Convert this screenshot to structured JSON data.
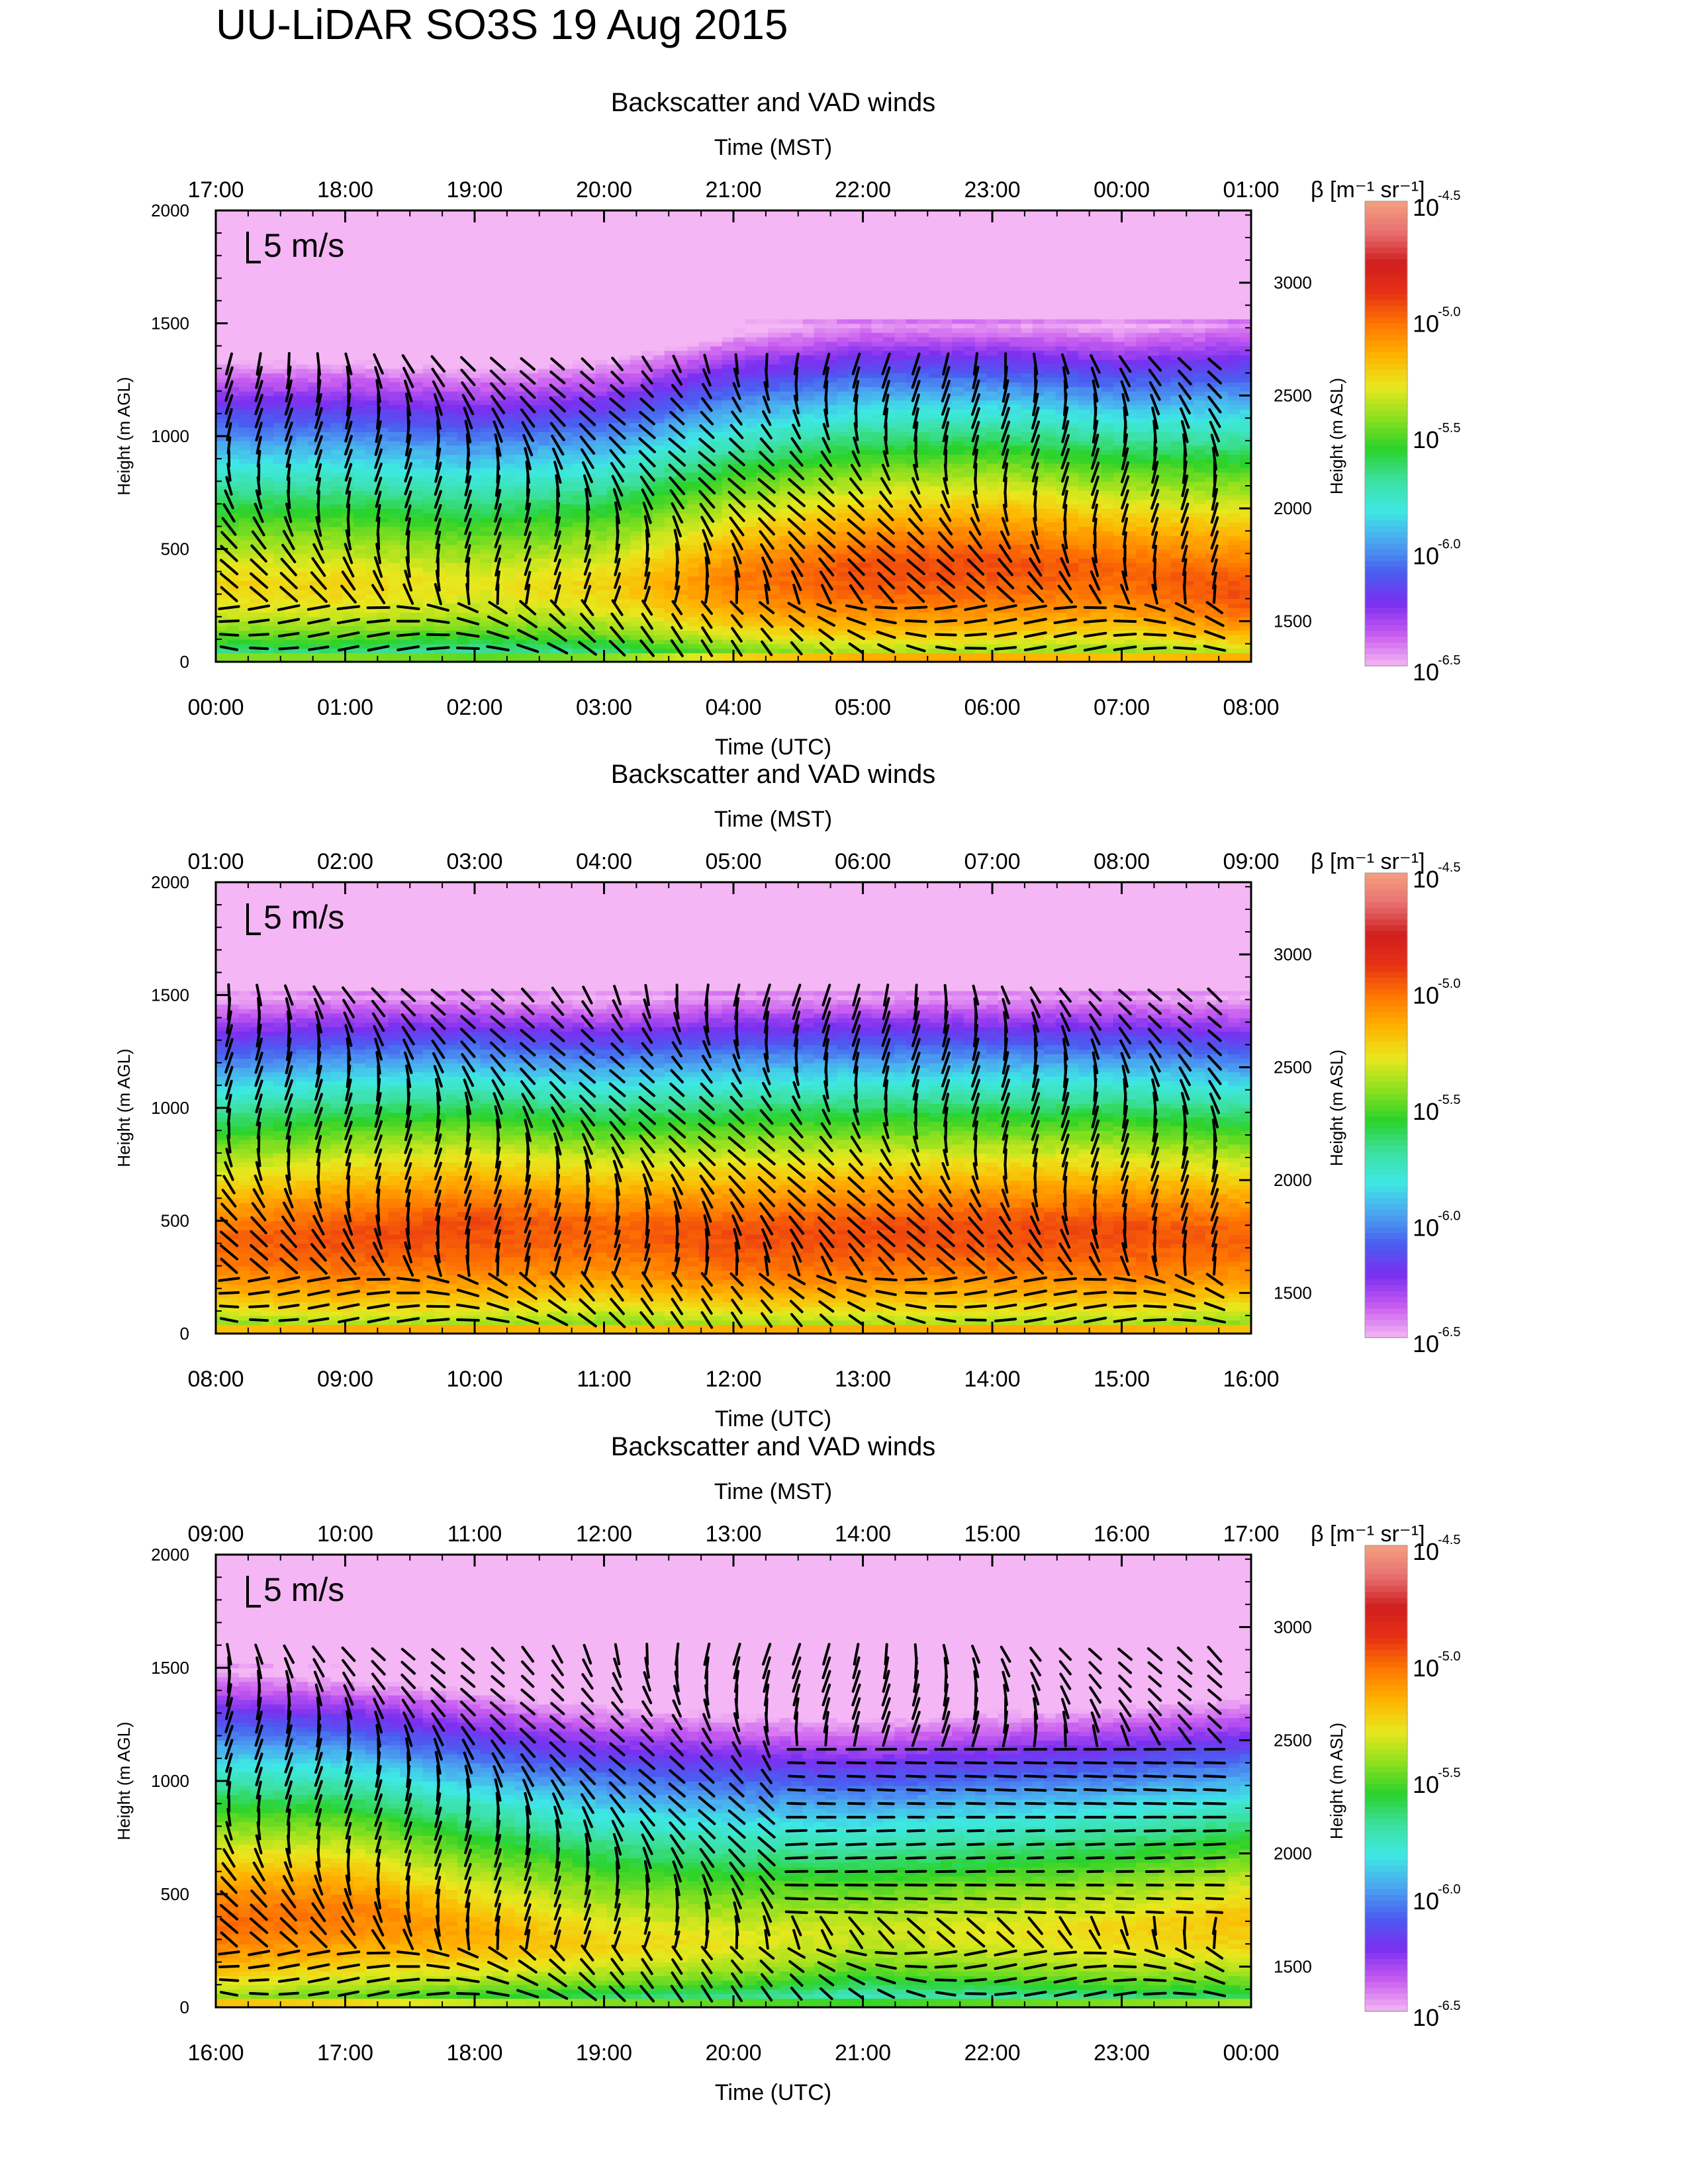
{
  "title": "UU-LiDAR SO3S 19 Aug 2015",
  "colorbar_label": "β [m⁻¹ sr⁻¹]",
  "colorbar_ticks": [
    {
      "base": "10",
      "exp": "-4.5"
    },
    {
      "base": "10",
      "exp": "-5.0"
    },
    {
      "base": "10",
      "exp": "-5.5"
    },
    {
      "base": "10",
      "exp": "-6.0"
    },
    {
      "base": "10",
      "exp": "-6.5"
    }
  ],
  "colors": {
    "arrow": "#000000",
    "scale": [
      "#f4b6f4",
      "#c85cf0",
      "#7b2ff0",
      "#4a5cf0",
      "#4aa6f0",
      "#3ee8e4",
      "#3ce0a0",
      "#2ad22a",
      "#8ee01e",
      "#e8e81e",
      "#ffb400",
      "#ff7800",
      "#e83214",
      "#d01e1e",
      "#e87070",
      "#f4a080"
    ]
  },
  "chart_data": [
    {
      "type": "heatmap",
      "title": "Backscatter and VAD winds",
      "xlabel": "Time (UTC)",
      "x_ticks": [
        "00:00",
        "01:00",
        "02:00",
        "03:00",
        "04:00",
        "05:00",
        "06:00",
        "07:00",
        "08:00"
      ],
      "top_xlabel": "Time (MST)",
      "top_ticks": [
        "17:00",
        "18:00",
        "19:00",
        "20:00",
        "21:00",
        "22:00",
        "23:00",
        "00:00",
        "01:00"
      ],
      "ylabel": "Height (m AGL)",
      "y_ticks": [
        0,
        500,
        1000,
        1500,
        2000
      ],
      "ylim": [
        0,
        2000
      ],
      "y2label": "Height (m ASL)",
      "y2_ticks": [
        1500,
        2000,
        2500,
        3000
      ],
      "scale_label": "5 m/s",
      "colorscale": "log10 β",
      "zlim": [
        -6.5,
        -4.5
      ],
      "layer_peak_height_m": [
        350,
        350,
        350,
        350,
        380,
        420,
        450,
        420,
        320
      ],
      "layer_peak_log_beta": [
        -5.25,
        -5.25,
        -5.3,
        -5.25,
        -5.05,
        -4.95,
        -4.95,
        -5.0,
        -4.95
      ],
      "winds_top_height_m": 1350
    },
    {
      "type": "heatmap",
      "title": "Backscatter and VAD winds",
      "xlabel": "Time (UTC)",
      "x_ticks": [
        "08:00",
        "09:00",
        "10:00",
        "11:00",
        "12:00",
        "13:00",
        "14:00",
        "15:00",
        "16:00"
      ],
      "top_xlabel": "Time (MST)",
      "top_ticks": [
        "01:00",
        "02:00",
        "03:00",
        "04:00",
        "05:00",
        "06:00",
        "07:00",
        "08:00",
        "09:00"
      ],
      "ylabel": "Height (m AGL)",
      "y_ticks": [
        0,
        500,
        1000,
        1500,
        2000
      ],
      "ylim": [
        0,
        2000
      ],
      "y2label": "Height (m ASL)",
      "y2_ticks": [
        1500,
        2000,
        2500,
        3000
      ],
      "scale_label": "5 m/s",
      "colorscale": "log10 β",
      "zlim": [
        -6.5,
        -4.5
      ],
      "layer_peak_height_m": [
        420,
        450,
        500,
        480,
        450,
        470,
        480,
        470,
        450
      ],
      "layer_peak_log_beta": [
        -5.0,
        -4.95,
        -4.95,
        -5.0,
        -4.95,
        -4.95,
        -4.95,
        -4.95,
        -5.0
      ],
      "winds_top_height_m": 1500
    },
    {
      "type": "heatmap",
      "title": "Backscatter and VAD winds",
      "xlabel": "Time (UTC)",
      "x_ticks": [
        "16:00",
        "17:00",
        "18:00",
        "19:00",
        "20:00",
        "21:00",
        "22:00",
        "23:00",
        "00:00"
      ],
      "top_xlabel": "Time (MST)",
      "top_ticks": [
        "09:00",
        "10:00",
        "11:00",
        "12:00",
        "13:00",
        "14:00",
        "15:00",
        "16:00",
        "17:00"
      ],
      "ylabel": "Height (m AGL)",
      "y_ticks": [
        0,
        500,
        1000,
        1500,
        2000
      ],
      "ylim": [
        0,
        2000
      ],
      "y2label": "Height (m ASL)",
      "y2_ticks": [
        1500,
        2000,
        2500,
        3000
      ],
      "scale_label": "5 m/s",
      "colorscale": "log10 β",
      "zlim": [
        -6.5,
        -4.5
      ],
      "layer_peak_height_m": [
        400,
        450,
        350,
        300,
        300,
        350,
        350,
        350,
        400
      ],
      "layer_peak_log_beta": [
        -5.0,
        -5.05,
        -5.15,
        -5.25,
        -5.3,
        -5.35,
        -5.3,
        -5.25,
        -5.2
      ],
      "winds_top_height_m": 1600
    }
  ]
}
